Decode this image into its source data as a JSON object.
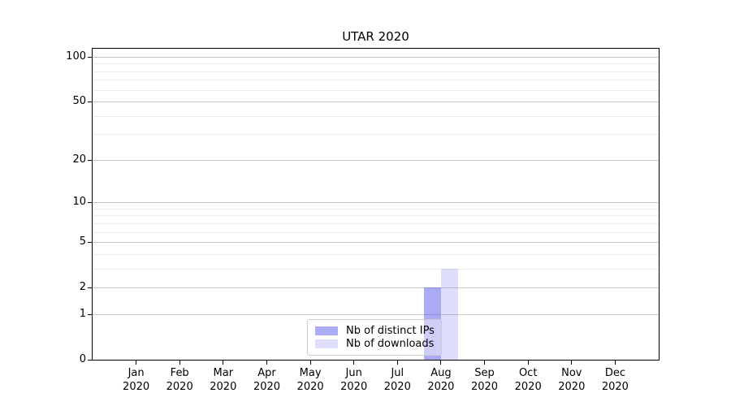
{
  "chart_data": {
    "type": "bar",
    "title": "UTAR 2020",
    "months": [
      "Jan",
      "Feb",
      "Mar",
      "Apr",
      "May",
      "Jun",
      "Jul",
      "Aug",
      "Sep",
      "Oct",
      "Nov",
      "Dec"
    ],
    "year": "2020",
    "series": [
      {
        "name": "Nb of distinct IPs",
        "color": "rgba(88,88,236,0.5)",
        "values": [
          0,
          0,
          0,
          0,
          0,
          0,
          0,
          2,
          0,
          0,
          0,
          0
        ]
      },
      {
        "name": "Nb of downloads",
        "color": "rgba(88,88,236,0.2)",
        "values": [
          0,
          0,
          0,
          0,
          0,
          0,
          0,
          3,
          0,
          0,
          0,
          0
        ]
      }
    ],
    "y_scale": "log1p",
    "y_major_ticks": [
      0,
      1,
      2,
      5,
      10,
      20,
      50,
      100
    ],
    "y_minor_ticks": [
      3,
      4,
      6,
      7,
      8,
      9,
      30,
      40,
      60,
      70,
      80,
      90
    ],
    "ylim": [
      0,
      113
    ],
    "grid": "both",
    "legend_location": "lower center",
    "axis_color": "#000000",
    "grid_major_color": "#c8c8c8",
    "grid_minor_color": "#ebebeb",
    "background_color": "#ffffff"
  }
}
